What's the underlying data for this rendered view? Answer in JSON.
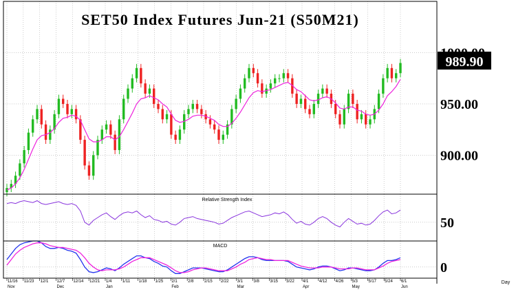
{
  "chart_data": {
    "type": "candlestick",
    "title": "SET50  Index  Futures  Jun-21  (S50M21)",
    "last_value": "989.90",
    "price_axis_labels": [
      "1000.00",
      "950.00",
      "900.00"
    ],
    "price_axis_values": [
      1000,
      950,
      900
    ],
    "price_range": [
      862,
      1050
    ],
    "x_labels": [
      "11/16",
      "11/23",
      "12/1",
      "12/7",
      "12/14",
      "12/21",
      "1/4",
      "1/11",
      "1/18",
      "1/25",
      "2/1",
      "2/8",
      "2/15",
      "2/22",
      "3/1",
      "3/8",
      "3/15",
      "3/22",
      "4/1",
      "4/12",
      "4/26",
      "5/3",
      "5/17",
      "5/24",
      "6/1"
    ],
    "month_labels": [
      "Nov",
      "Dec",
      "Jan",
      "Feb",
      "Mar",
      "Apr",
      "May",
      "Jun"
    ],
    "x_axis_unit": "Day",
    "close": [
      868,
      872,
      880,
      892,
      905,
      922,
      935,
      945,
      930,
      915,
      925,
      940,
      955,
      950,
      940,
      945,
      935,
      915,
      890,
      880,
      900,
      915,
      925,
      930,
      920,
      905,
      935,
      955,
      965,
      975,
      985,
      970,
      960,
      965,
      950,
      945,
      935,
      940,
      920,
      915,
      925,
      940,
      945,
      950,
      945,
      940,
      935,
      930,
      925,
      915,
      920,
      930,
      945,
      955,
      965,
      975,
      985,
      980,
      970,
      960,
      965,
      970,
      975,
      975,
      980,
      975,
      960,
      950,
      955,
      945,
      940,
      950,
      960,
      965,
      960,
      950,
      940,
      930,
      945,
      960,
      950,
      935,
      940,
      930,
      935,
      945,
      960,
      975,
      985,
      975,
      980,
      989.9
    ],
    "ma": [
      866,
      868,
      872,
      878,
      886,
      896,
      906,
      915,
      919,
      920,
      922,
      926,
      932,
      936,
      937,
      939,
      938,
      934,
      925,
      916,
      913,
      913,
      915,
      918,
      918,
      915,
      918,
      925,
      933,
      941,
      950,
      955,
      956,
      958,
      956,
      954,
      950,
      947,
      940,
      934,
      932,
      933,
      935,
      938,
      939,
      939,
      938,
      936,
      934,
      930,
      928,
      928,
      931,
      936,
      942,
      949,
      956,
      961,
      963,
      962,
      963,
      964,
      966,
      968,
      970,
      971,
      968,
      964,
      962,
      958,
      954,
      953,
      954,
      956,
      957,
      955,
      951,
      946,
      945,
      947,
      947,
      944,
      943,
      940,
      939,
      940,
      944,
      950,
      958,
      962,
      967,
      974
    ],
    "rsi_indicator": "Relative  Strength  Index",
    "rsi_axis_label": "50",
    "rsi_axis_value": 50,
    "rsi_range": [
      30,
      80
    ],
    "rsi": [
      70,
      71,
      70,
      72,
      73,
      72,
      71,
      73,
      70,
      69,
      70,
      71,
      72,
      70,
      69,
      70,
      68,
      62,
      50,
      47,
      52,
      55,
      58,
      60,
      56,
      53,
      57,
      60,
      61,
      60,
      62,
      58,
      55,
      57,
      53,
      52,
      50,
      51,
      48,
      47,
      50,
      54,
      55,
      56,
      54,
      53,
      52,
      51,
      50,
      48,
      49,
      52,
      55,
      57,
      59,
      61,
      62,
      60,
      58,
      56,
      57,
      58,
      60,
      59,
      61,
      58,
      53,
      49,
      51,
      48,
      47,
      50,
      54,
      56,
      54,
      50,
      47,
      45,
      50,
      54,
      51,
      48,
      49,
      47,
      48,
      52,
      57,
      61,
      63,
      59,
      60,
      63
    ],
    "macd_indicator": "MACD",
    "macd_axis_label": "0",
    "macd_axis_value": 0,
    "macd_range": [
      -12,
      28
    ],
    "macd": [
      8,
      14,
      20,
      24,
      26,
      27,
      28,
      28,
      26,
      22,
      20,
      20,
      21,
      20,
      18,
      17,
      15,
      8,
      0,
      -5,
      -6,
      -5,
      -3,
      -1,
      -2,
      -4,
      -1,
      3,
      6,
      9,
      12,
      12,
      10,
      9,
      6,
      4,
      1,
      0,
      -4,
      -7,
      -7,
      -5,
      -3,
      -1,
      -1,
      -1,
      -2,
      -3,
      -4,
      -5,
      -5,
      -3,
      0,
      3,
      6,
      9,
      11,
      11,
      10,
      8,
      7,
      7,
      7,
      7,
      7,
      6,
      3,
      0,
      -1,
      -2,
      -3,
      -2,
      0,
      1,
      1,
      0,
      -2,
      -4,
      -3,
      -1,
      -1,
      -2,
      -3,
      -4,
      -4,
      -3,
      0,
      4,
      7,
      7,
      8,
      10
    ],
    "macd_signal": [
      2,
      8,
      14,
      18,
      21,
      23,
      25,
      26,
      26,
      25,
      23,
      22,
      21,
      21,
      20,
      19,
      18,
      15,
      10,
      4,
      0,
      -3,
      -4,
      -3,
      -3,
      -3,
      -2,
      0,
      3,
      6,
      8,
      10,
      10,
      10,
      8,
      6,
      4,
      2,
      -1,
      -4,
      -6,
      -6,
      -5,
      -3,
      -2,
      -1,
      -1,
      -2,
      -3,
      -4,
      -4,
      -4,
      -2,
      0,
      3,
      5,
      8,
      9,
      10,
      9,
      8,
      8,
      7,
      7,
      7,
      7,
      5,
      3,
      1,
      0,
      -1,
      -1,
      -1,
      0,
      0,
      0,
      -1,
      -2,
      -2,
      -2,
      -1,
      -1,
      -2,
      -3,
      -3,
      -3,
      -1,
      1,
      4,
      6,
      7,
      8
    ]
  }
}
